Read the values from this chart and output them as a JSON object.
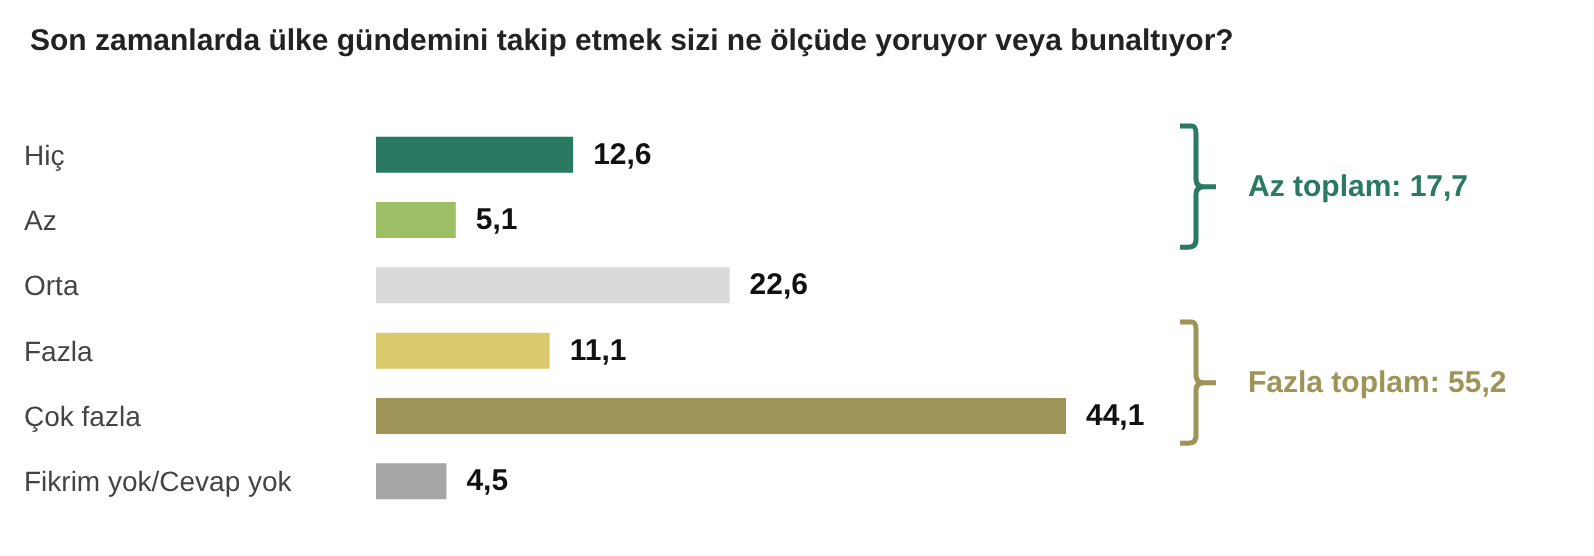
{
  "chart_data": {
    "type": "bar",
    "orientation": "horizontal",
    "title": "Son zamanlarda ülke gündemini takip etmek sizi ne ölçüde yoruyor veya bunaltıyor?",
    "categories": [
      "Hiç",
      "Az",
      "Orta",
      "Fazla",
      "Çok fazla",
      "Fikrim yok/Cevap yok"
    ],
    "values": [
      12.6,
      5.1,
      22.6,
      11.1,
      44.1,
      4.5
    ],
    "colors": [
      "#2a7a63",
      "#9cbf66",
      "#d9d9d9",
      "#dbc96e",
      "#9e9458",
      "#a6a6a6"
    ],
    "value_labels": [
      "12,6",
      "5,1",
      "22,6",
      "11,1",
      "44,1",
      "4,5"
    ],
    "tick_labels": "y",
    "annotations": [
      "Az toplam: 17,7",
      "Fazla toplam: 55,2"
    ]
  }
}
